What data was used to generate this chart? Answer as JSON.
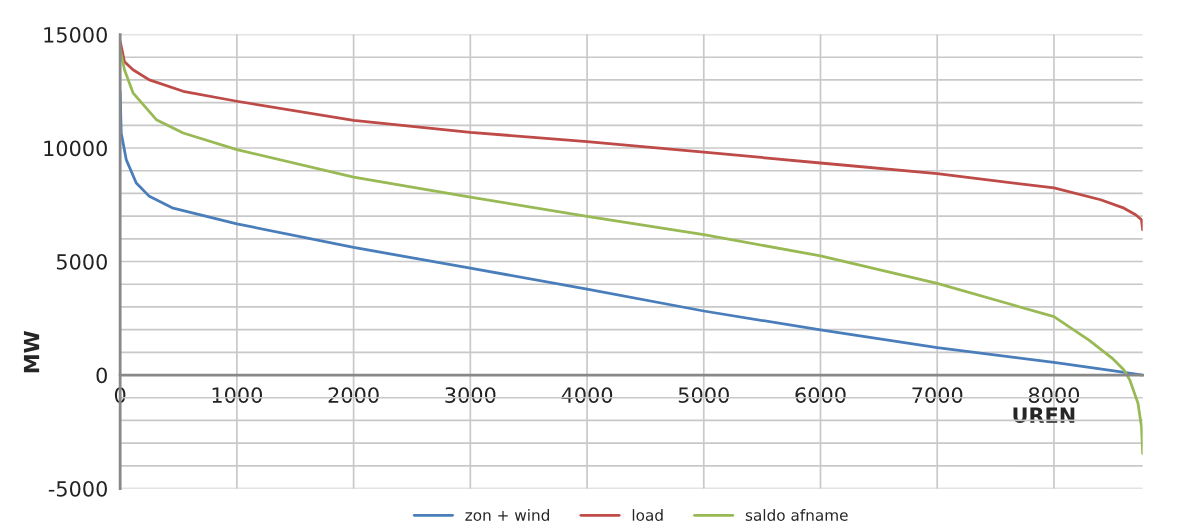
{
  "chart_data": {
    "type": "line",
    "xlabel": "UREN",
    "ylabel": "MW",
    "xlim": [
      0,
      8760
    ],
    "ylim": [
      -5000,
      15000
    ],
    "xticks": [
      0,
      1000,
      2000,
      3000,
      4000,
      5000,
      6000,
      7000,
      8000
    ],
    "yticks": [
      -5000,
      {
        "value": -4000,
        "label": null
      },
      {
        "value": -3000,
        "label": null
      },
      {
        "value": -2000,
        "label": null
      },
      {
        "value": -1000,
        "label": null
      },
      0,
      {
        "value": 1000,
        "label": null
      },
      {
        "value": 2000,
        "label": null
      },
      {
        "value": 3000,
        "label": null
      },
      {
        "value": 4000,
        "label": null
      },
      5000,
      {
        "value": 6000,
        "label": null
      },
      {
        "value": 7000,
        "label": null
      },
      {
        "value": 8000,
        "label": null
      },
      {
        "value": 9000,
        "label": null
      },
      10000,
      {
        "value": 11000,
        "label": null
      },
      {
        "value": 12000,
        "label": null
      },
      {
        "value": 13000,
        "label": null
      },
      {
        "value": 14000,
        "label": null
      },
      15000
    ],
    "grid": true,
    "legend": "bottom",
    "marker": "none",
    "line_style": "solid",
    "series": [
      {
        "name": "zon + wind",
        "color": "#4a7ebb",
        "x": [
          0,
          9,
          52,
          138,
          250,
          454,
          1000,
          2000,
          3000,
          4000,
          5000,
          6000,
          7000,
          8000,
          8500,
          8760
        ],
        "values": [
          12500,
          10660,
          9490,
          8460,
          7870,
          7350,
          6660,
          5620,
          4710,
          3780,
          2820,
          1985,
          1205,
          560,
          190,
          0
        ]
      },
      {
        "name": "load",
        "color": "#be4b48",
        "x": [
          0,
          37,
          110,
          250,
          540,
          1000,
          2000,
          3000,
          4000,
          5000,
          6000,
          7000,
          8000,
          8400,
          8600,
          8700,
          8750,
          8760
        ],
        "values": [
          14700,
          13800,
          13450,
          13000,
          12500,
          12060,
          11220,
          10690,
          10280,
          9820,
          9340,
          8870,
          8240,
          7720,
          7350,
          7060,
          6840,
          6400
        ]
      },
      {
        "name": "saldo afname",
        "color": "#98b954",
        "x": [
          0,
          37,
          110,
          310,
          540,
          1000,
          2000,
          3000,
          4000,
          5000,
          6000,
          7000,
          8000,
          8300,
          8500,
          8600,
          8650,
          8720,
          8750,
          8760
        ],
        "values": [
          14340,
          13450,
          12430,
          11250,
          10660,
          9930,
          8720,
          7840,
          6985,
          6180,
          5250,
          4040,
          2570,
          1540,
          735,
          220,
          -220,
          -1250,
          -2280,
          -3460
        ]
      }
    ]
  }
}
